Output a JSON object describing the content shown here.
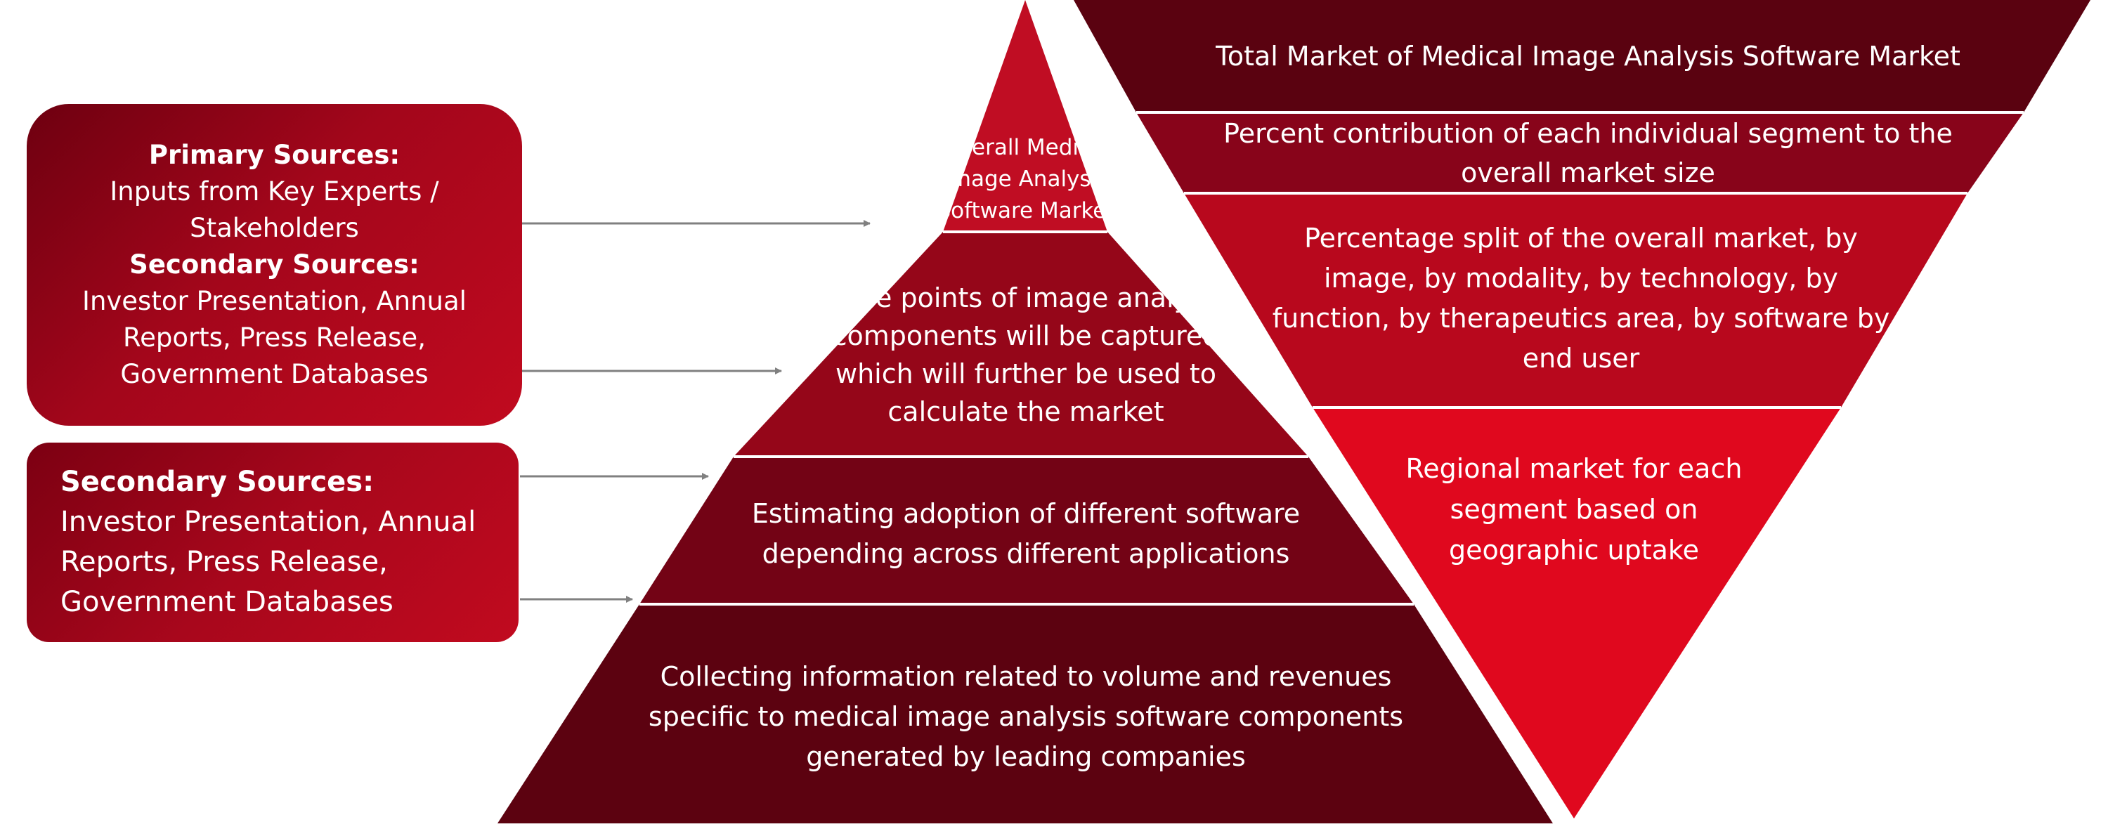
{
  "source_boxes": {
    "primary_box": {
      "heading": "Primary Sources:",
      "lines": [
        "Inputs from Key Experts /",
        "Stakeholders"
      ],
      "secondary_heading": "Secondary Sources:",
      "secondary_lines": [
        "Investor Presentation, Annual",
        "Reports, Press Release,",
        "Government Databases"
      ]
    },
    "secondary_box": {
      "heading": "Secondary Sources:",
      "lines": [
        "Investor Presentation, Annual",
        "Reports, Press Release,",
        "Government Databases"
      ]
    }
  },
  "pyramid": {
    "apex": "Overall Medical Image Analysis Software Market",
    "layers": [
      "Price points of image analysis components will be captured which will further be used to calculate the market",
      "Estimating adoption of different software depending across different applications",
      "Collecting information related to volume and revenues specific to medical image analysis software  components generated by leading companies"
    ]
  },
  "funnel": {
    "layers": [
      "Total Market of Medical Image Analysis Software Market",
      "Percent contribution of each individual segment to the overall market size",
      "Percentage split of the overall market, by image, by modality, by technology, by function, by therapeutics area, by software by end user",
      "Regional market for each segment based on geographic uptake"
    ]
  },
  "colors": {
    "dark_maroon": "#5a0210",
    "mid_red": "#8a0418",
    "bright_red": "#c90a1e",
    "vivid_red": "#e2081e",
    "arrow_gray": "#808080"
  }
}
